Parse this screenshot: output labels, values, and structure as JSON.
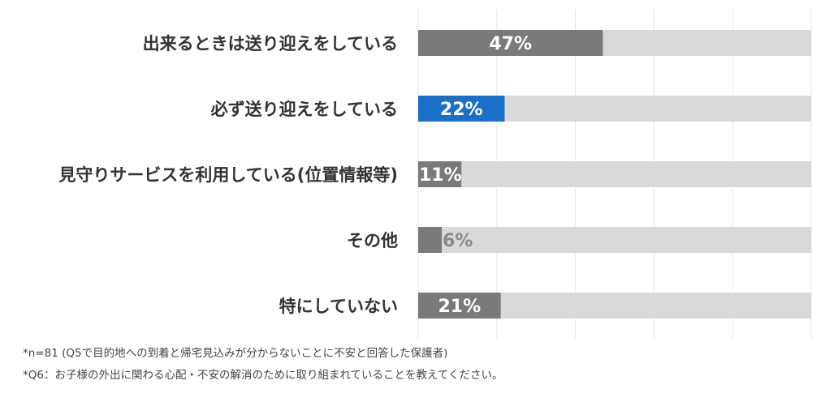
{
  "chart_data": {
    "type": "bar",
    "orientation": "horizontal",
    "categories": [
      "出来るときは送り迎えをしている",
      "必ず送り迎えをしている",
      "見守りサービスを利用している(位置情報等)",
      "その他",
      "特にしていない"
    ],
    "values": [
      47,
      22,
      11,
      6,
      21
    ],
    "value_labels": [
      "47%",
      "22%",
      "11%",
      "6%",
      "21%"
    ],
    "xlim": [
      0,
      100
    ],
    "grid": true,
    "legend": "none",
    "colors": {
      "bar": "#7a7a7a",
      "highlight": "#1a6fc9",
      "highlight_index": 1,
      "track": "#d9d9d9",
      "grid": "#e6e6e6"
    }
  },
  "notes": [
    "*n=81 (Q5で目的地への到着と帰宅見込みが分からないことに不安と回答した保護者)",
    "*Q6：お子様の外出に関わる心配・不安の解消のために取り組まれていることを教えてください。"
  ]
}
